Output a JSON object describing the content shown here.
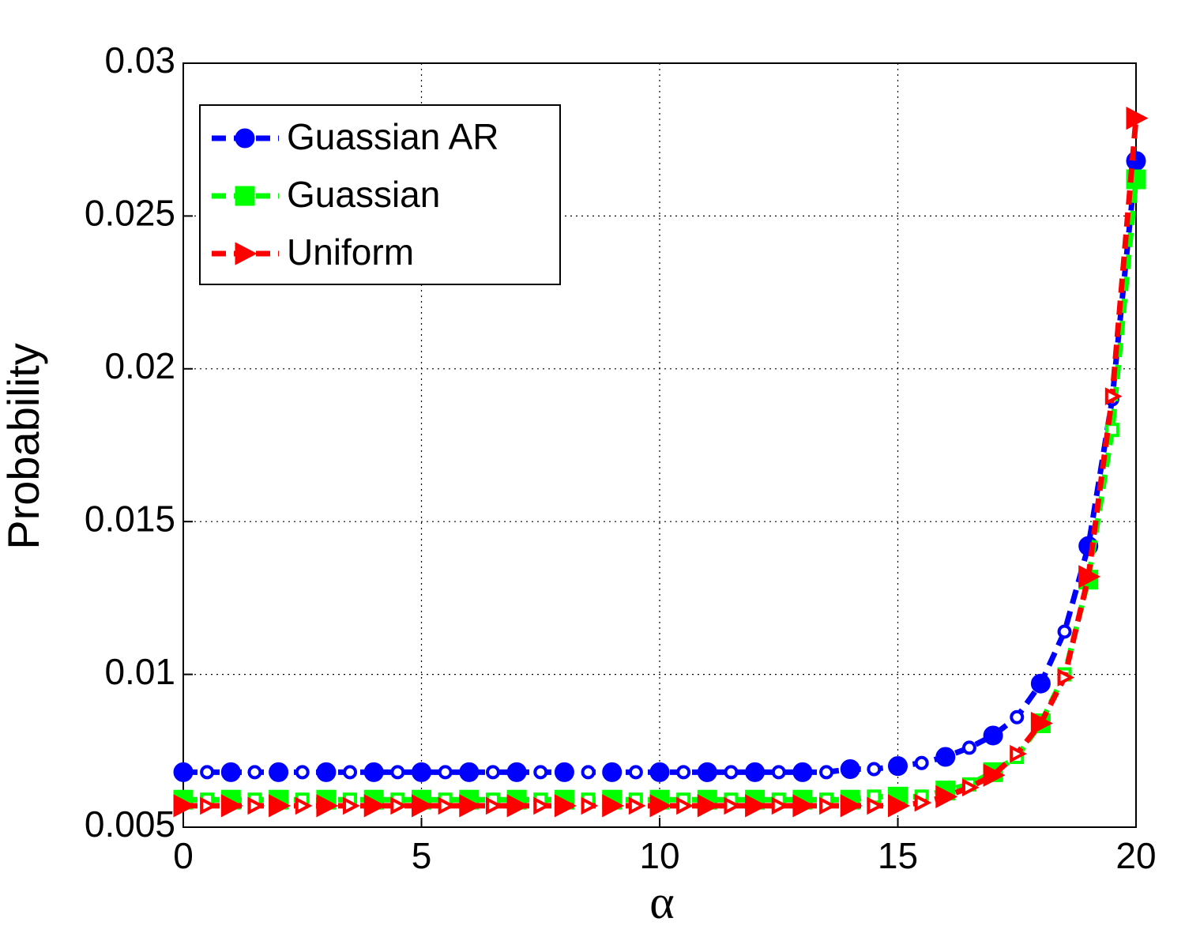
{
  "chart_data": {
    "type": "line",
    "xlabel": "α",
    "ylabel": "Probability",
    "x": [
      0,
      0.5,
      1,
      1.5,
      2,
      2.5,
      3,
      3.5,
      4,
      4.5,
      5,
      5.5,
      6,
      6.5,
      7,
      7.5,
      8,
      8.5,
      9,
      9.5,
      10,
      10.5,
      11,
      11.5,
      12,
      12.5,
      13,
      13.5,
      14,
      14.5,
      15,
      15.5,
      16,
      16.5,
      17,
      17.5,
      18,
      18.5,
      19,
      19.5,
      20
    ],
    "series": [
      {
        "name": "Guassian AR",
        "color": "#0000ff",
        "marker": "circle",
        "values": [
          0.0068,
          0.0068,
          0.0068,
          0.0068,
          0.0068,
          0.0068,
          0.0068,
          0.0068,
          0.0068,
          0.0068,
          0.0068,
          0.0068,
          0.0068,
          0.0068,
          0.0068,
          0.0068,
          0.0068,
          0.0068,
          0.0068,
          0.0068,
          0.0068,
          0.0068,
          0.0068,
          0.0068,
          0.0068,
          0.0068,
          0.0068,
          0.0068,
          0.0069,
          0.0069,
          0.007,
          0.0071,
          0.0073,
          0.0076,
          0.008,
          0.0086,
          0.0097,
          0.0114,
          0.0142,
          0.019,
          0.0268
        ]
      },
      {
        "name": "Guassian",
        "color": "#00ff00",
        "marker": "square",
        "values": [
          0.0059,
          0.0059,
          0.0059,
          0.0059,
          0.0059,
          0.0059,
          0.0059,
          0.0059,
          0.0059,
          0.0059,
          0.0059,
          0.0059,
          0.0059,
          0.0059,
          0.0059,
          0.0059,
          0.0059,
          0.0059,
          0.0059,
          0.0059,
          0.0059,
          0.0059,
          0.0059,
          0.0059,
          0.0059,
          0.0059,
          0.0059,
          0.0059,
          0.0059,
          0.006,
          0.006,
          0.006,
          0.0062,
          0.0064,
          0.0068,
          0.0073,
          0.0084,
          0.01,
          0.0131,
          0.018,
          0.0262
        ]
      },
      {
        "name": "Uniform",
        "color": "#ff0000",
        "marker": "triangle-right",
        "values": [
          0.0057,
          0.0057,
          0.0057,
          0.0057,
          0.0057,
          0.0057,
          0.0057,
          0.0057,
          0.0057,
          0.0057,
          0.0057,
          0.0057,
          0.0057,
          0.0057,
          0.0057,
          0.0057,
          0.0057,
          0.0057,
          0.0057,
          0.0057,
          0.0057,
          0.0057,
          0.0057,
          0.0057,
          0.0057,
          0.0057,
          0.0057,
          0.0057,
          0.0057,
          0.0057,
          0.0057,
          0.0058,
          0.006,
          0.0063,
          0.0067,
          0.0074,
          0.0084,
          0.0099,
          0.0132,
          0.0191,
          0.0282
        ]
      }
    ],
    "xlim": [
      0,
      20
    ],
    "xticks": [
      0,
      5,
      10,
      15,
      20
    ],
    "ylim": [
      0.005,
      0.03
    ],
    "yticks": [
      0.005,
      0.01,
      0.015,
      0.02,
      0.025,
      0.03
    ],
    "grid": true,
    "legend": "upper left"
  }
}
